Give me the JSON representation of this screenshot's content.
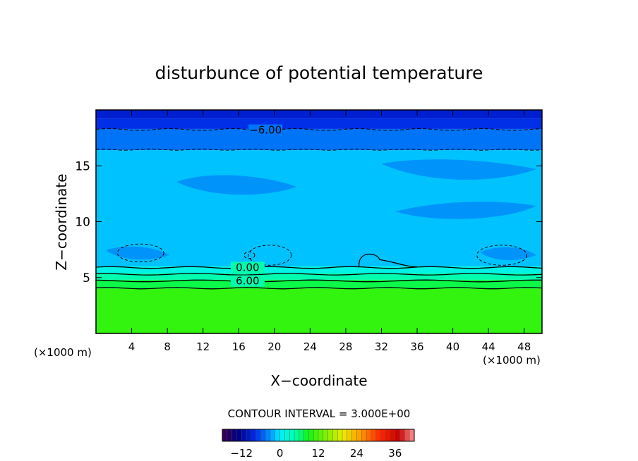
{
  "chart_data": {
    "type": "heatmap",
    "title": "disturbunce of potential temperature",
    "xlabel": "X−coordinate",
    "ylabel": "Z−coordinate",
    "x_unit_left": "(×1000 m)",
    "x_unit_right": "(×1000 m)",
    "xlim": [
      0,
      50
    ],
    "ylim": [
      0,
      20
    ],
    "x_ticks": [
      4,
      8,
      12,
      16,
      20,
      24,
      28,
      32,
      36,
      40,
      44,
      48
    ],
    "y_ticks": [
      5,
      10,
      15
    ],
    "contour_interval_text": "CONTOUR INTERVAL = 3.000E+00",
    "contour_labels": [
      {
        "text": "−6.00",
        "x": 19,
        "z": 18.2
      },
      {
        "text": "0.00",
        "x": 17,
        "z": 5.9
      },
      {
        "text": "6.00",
        "x": 17,
        "z": 4.7
      }
    ],
    "bands": [
      {
        "z": [
          19.2,
          20.0
        ],
        "value": -9
      },
      {
        "z": [
          18.3,
          19.2
        ],
        "value": -7.5
      },
      {
        "z": [
          16.4,
          18.3
        ],
        "value": -4.5
      },
      {
        "z": [
          6.0,
          16.4
        ],
        "value": -1.5
      },
      {
        "z": [
          5.4,
          6.0
        ],
        "value": 1.5
      },
      {
        "z": [
          4.8,
          5.4
        ],
        "value": 4.5
      },
      {
        "z": [
          4.0,
          4.8
        ],
        "value": 7.5
      },
      {
        "z": [
          0.0,
          4.0
        ],
        "value": 10.5
      }
    ],
    "colorbar": {
      "min": -18,
      "max": 42,
      "ticks": [
        {
          "value": -12,
          "label": "−12"
        },
        {
          "value": 0,
          "label": "0"
        },
        {
          "value": 12,
          "label": "12"
        },
        {
          "value": 24,
          "label": "24"
        },
        {
          "value": 36,
          "label": "36"
        }
      ]
    },
    "grid": false
  }
}
